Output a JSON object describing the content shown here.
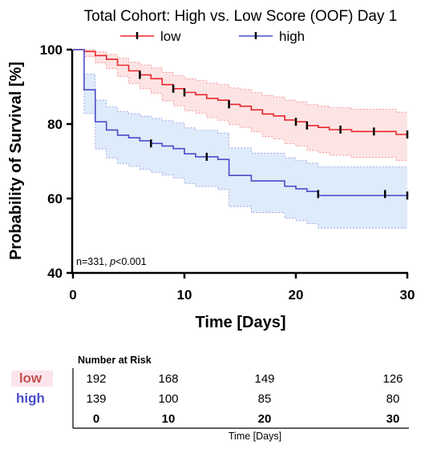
{
  "chart_data": {
    "type": "line",
    "subtype": "kaplan-meier",
    "title": "Total Cohort: High vs. Low Score (OOF) Day 1",
    "xlabel": "Time [Days]",
    "ylabel": "Probability of Survival [%]",
    "xlim": [
      0,
      30
    ],
    "ylim": [
      40,
      100
    ],
    "x_ticks": [
      "0",
      "10",
      "20",
      "30"
    ],
    "y_ticks": [
      "40",
      "60",
      "80",
      "100"
    ],
    "grid": false,
    "legend_position": "top-center",
    "annotation": {
      "prefix": "n=331, ",
      "p_symbol": "p",
      "suffix": "<0.001"
    },
    "series": [
      {
        "name": "low",
        "color": "#e8262c",
        "band_color": "#fde4e4",
        "steps": [
          [
            0,
            100
          ],
          [
            1,
            99.5
          ],
          [
            2,
            98.4
          ],
          [
            3,
            97.4
          ],
          [
            4,
            95.8
          ],
          [
            5,
            94.3
          ],
          [
            6,
            93.2
          ],
          [
            7,
            92.2
          ],
          [
            8,
            90.6
          ],
          [
            9,
            89.5
          ],
          [
            10,
            88.5
          ],
          [
            11,
            87.9
          ],
          [
            12,
            86.9
          ],
          [
            13,
            86.4
          ],
          [
            14,
            85.3
          ],
          [
            15,
            84.8
          ],
          [
            16,
            83.8
          ],
          [
            17,
            82.7
          ],
          [
            18,
            82.2
          ],
          [
            19,
            81.1
          ],
          [
            20,
            80.6
          ],
          [
            21,
            79.6
          ],
          [
            22,
            79.1
          ],
          [
            23,
            78.5
          ],
          [
            25,
            78.0
          ],
          [
            29,
            77.2
          ]
        ],
        "lower": [
          [
            0,
            100
          ],
          [
            1,
            98.1
          ],
          [
            2,
            96.4
          ],
          [
            3,
            94.9
          ],
          [
            4,
            92.8
          ],
          [
            5,
            90.9
          ],
          [
            6,
            89.5
          ],
          [
            7,
            88.2
          ],
          [
            8,
            86.2
          ],
          [
            9,
            84.9
          ],
          [
            10,
            83.6
          ],
          [
            11,
            82.9
          ],
          [
            12,
            81.7
          ],
          [
            13,
            81.0
          ],
          [
            14,
            79.8
          ],
          [
            15,
            79.1
          ],
          [
            16,
            77.9
          ],
          [
            17,
            76.6
          ],
          [
            18,
            76.0
          ],
          [
            19,
            74.7
          ],
          [
            20,
            74.1
          ],
          [
            21,
            72.9
          ],
          [
            22,
            72.3
          ],
          [
            23,
            71.6
          ],
          [
            25,
            71.0
          ],
          [
            29,
            70.2
          ]
        ],
        "upper": [
          [
            0,
            100
          ],
          [
            1,
            100
          ],
          [
            2,
            99.4
          ],
          [
            3,
            98.7
          ],
          [
            4,
            97.7
          ],
          [
            5,
            96.6
          ],
          [
            6,
            95.9
          ],
          [
            7,
            95.1
          ],
          [
            8,
            93.9
          ],
          [
            9,
            93.0
          ],
          [
            10,
            92.2
          ],
          [
            11,
            91.7
          ],
          [
            12,
            91.0
          ],
          [
            13,
            90.6
          ],
          [
            14,
            89.7
          ],
          [
            15,
            89.3
          ],
          [
            16,
            88.5
          ],
          [
            17,
            87.7
          ],
          [
            18,
            87.3
          ],
          [
            19,
            86.4
          ],
          [
            20,
            86.0
          ],
          [
            21,
            85.2
          ],
          [
            22,
            84.8
          ],
          [
            23,
            84.4
          ],
          [
            25,
            84.0
          ],
          [
            29,
            83.2
          ]
        ],
        "censored": [
          [
            6,
            93.2
          ],
          [
            9,
            89.5
          ],
          [
            10,
            88.5
          ],
          [
            14,
            85.3
          ],
          [
            20,
            80.6
          ],
          [
            21,
            79.6
          ],
          [
            24,
            78.5
          ],
          [
            27,
            78.0
          ],
          [
            30,
            77.2
          ]
        ]
      },
      {
        "name": "high",
        "color": "#4a4dc8",
        "band_color": "#deebfa",
        "steps": [
          [
            0,
            100
          ],
          [
            1,
            89.2
          ],
          [
            2,
            80.6
          ],
          [
            3,
            78.4
          ],
          [
            4,
            77.0
          ],
          [
            5,
            76.3
          ],
          [
            6,
            75.5
          ],
          [
            7,
            74.8
          ],
          [
            8,
            74.1
          ],
          [
            9,
            73.4
          ],
          [
            10,
            72.0
          ],
          [
            11,
            71.2
          ],
          [
            13,
            70.5
          ],
          [
            14,
            66.2
          ],
          [
            16,
            64.7
          ],
          [
            19,
            63.3
          ],
          [
            20,
            62.6
          ],
          [
            21,
            61.9
          ],
          [
            22,
            60.8
          ]
        ],
        "lower": [
          [
            0,
            100
          ],
          [
            1,
            82.8
          ],
          [
            2,
            73.3
          ],
          [
            3,
            70.9
          ],
          [
            4,
            69.4
          ],
          [
            5,
            68.6
          ],
          [
            6,
            67.8
          ],
          [
            7,
            67.0
          ],
          [
            8,
            66.3
          ],
          [
            9,
            65.5
          ],
          [
            10,
            64.0
          ],
          [
            11,
            63.2
          ],
          [
            13,
            62.4
          ],
          [
            14,
            57.8
          ],
          [
            16,
            56.2
          ],
          [
            19,
            54.7
          ],
          [
            20,
            54.0
          ],
          [
            21,
            53.2
          ],
          [
            22,
            52.0
          ]
        ],
        "upper": [
          [
            0,
            100
          ],
          [
            1,
            93.4
          ],
          [
            2,
            86.4
          ],
          [
            3,
            84.6
          ],
          [
            4,
            83.4
          ],
          [
            5,
            82.8
          ],
          [
            6,
            82.1
          ],
          [
            7,
            81.5
          ],
          [
            8,
            80.9
          ],
          [
            9,
            80.3
          ],
          [
            10,
            79.0
          ],
          [
            11,
            78.3
          ],
          [
            13,
            77.6
          ],
          [
            14,
            73.6
          ],
          [
            16,
            72.2
          ],
          [
            19,
            70.9
          ],
          [
            20,
            70.2
          ],
          [
            21,
            69.5
          ],
          [
            22,
            68.5
          ]
        ],
        "censored": [
          [
            7,
            74.8
          ],
          [
            12,
            71.2
          ],
          [
            22,
            61.2
          ],
          [
            28,
            61.2
          ],
          [
            30,
            60.8
          ]
        ]
      }
    ],
    "risk_table": {
      "header": "Number at Risk",
      "times": [
        "0",
        "10",
        "20",
        "30"
      ],
      "rows": [
        {
          "group": "low",
          "color": "#c0504d",
          "bg": "#fde4ec",
          "values": [
            "192",
            "168",
            "149",
            "126"
          ]
        },
        {
          "group": "high",
          "color": "#4a4dc8",
          "bg": "#ffffff",
          "values": [
            "139",
            "100",
            "85",
            "80"
          ]
        }
      ],
      "xlabel": "Time [Days]"
    }
  }
}
